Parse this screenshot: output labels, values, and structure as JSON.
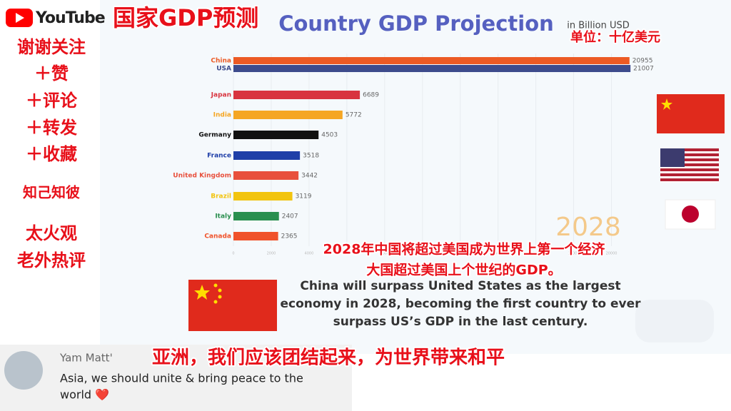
{
  "header": {
    "logo": "YouTube",
    "chinese_title": "国家GDP预测",
    "unit_note": "单位：十亿美元"
  },
  "sidebar": [
    "谢谢关注",
    "＋赞",
    "＋评论",
    "＋转发",
    "＋收藏",
    "知己知彼",
    "太火观",
    "老外热评"
  ],
  "chart_data": {
    "type": "bar",
    "orientation": "horizontal",
    "title": "Country GDP Projection",
    "subtitle": "in Billion USD",
    "categories": [
      "China",
      "USA",
      "Japan",
      "India",
      "Germany",
      "France",
      "United Kingdom",
      "Brazil",
      "Italy",
      "Canada"
    ],
    "values": [
      20955,
      21007,
      6689,
      5772,
      4503,
      3518,
      3442,
      3119,
      2407,
      2365
    ],
    "colors": [
      "#ec5a24",
      "#3d4b8c",
      "#d8343f",
      "#f5a623",
      "#111111",
      "#1f3fa8",
      "#e8503c",
      "#f2c40f",
      "#2a8f4f",
      "#f0522a"
    ],
    "xlim": [
      0,
      21000
    ],
    "xticks": [
      0,
      2000,
      4000,
      6000,
      8000,
      10000,
      12000,
      14000,
      16000,
      18000,
      20000
    ],
    "annotation": "2028"
  },
  "captions": {
    "chinese": [
      "2028年中国将超过美国成为世界上第一个经济",
      "大国超过美国上个世纪的GDP。"
    ],
    "english": [
      "China will surpass United States as the largest",
      "economy in 2028, becoming the first country to ever",
      "surpass US’s GDP in the last century."
    ]
  },
  "comment": {
    "author": "Yam Matt'",
    "text_lines": [
      "Asia, we should unite & bring peace to the",
      "world ❤️"
    ],
    "chinese_subtitle": "亚洲，我们应该团结起来，为世界带来和平"
  }
}
